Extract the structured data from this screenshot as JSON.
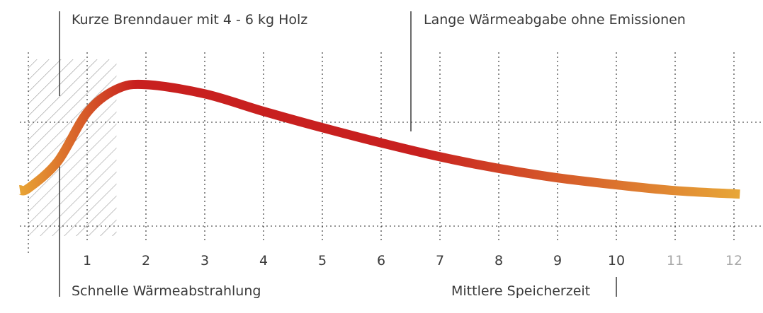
{
  "annotations": {
    "top_left": "Kurze Brenndauer mit 4 - 6 kg Holz",
    "top_right": "Lange Wärmeabgabe ohne Emissionen",
    "bottom_left": "Schnelle Wärmeabstrahlung",
    "bottom_right": "Mittlere Speicherzeit"
  },
  "colors": {
    "curve_start": "#e8a434",
    "curve_peak": "#c8201f",
    "curve_end": "#e8a838",
    "tick_normal": "#3a3a3a",
    "tick_faded": "#a8a8a8",
    "grid": "#2a2a2a",
    "hatch": "#9a9a9a"
  },
  "chart_data": {
    "type": "line",
    "title": "",
    "xlabel": "",
    "ylabel": "",
    "x_ticks": [
      {
        "label": "1",
        "value": 1,
        "faded": false
      },
      {
        "label": "2",
        "value": 2,
        "faded": false
      },
      {
        "label": "3",
        "value": 3,
        "faded": false
      },
      {
        "label": "4",
        "value": 4,
        "faded": false
      },
      {
        "label": "5",
        "value": 5,
        "faded": false
      },
      {
        "label": "6",
        "value": 6,
        "faded": false
      },
      {
        "label": "7",
        "value": 7,
        "faded": false
      },
      {
        "label": "8",
        "value": 8,
        "faded": false
      },
      {
        "label": "9",
        "value": 9,
        "faded": false
      },
      {
        "label": "10",
        "value": 10,
        "faded": false
      },
      {
        "label": "11",
        "value": 11,
        "faded": true
      },
      {
        "label": "12",
        "value": 12,
        "faded": true
      }
    ],
    "xlim": [
      -1,
      12.5
    ],
    "ylim": [
      0,
      100
    ],
    "grid": true,
    "shaded_region": {
      "x_start": 0,
      "x_end": 1.5,
      "pattern": "diagonal-hatch"
    },
    "series": [
      {
        "x": [
          0,
          0.5,
          1,
          1.5,
          2,
          3,
          4,
          5,
          6,
          7,
          8,
          9,
          10,
          11,
          12.1
        ],
        "y": [
          10,
          33,
          75,
          95,
          99,
          91,
          76,
          62,
          49,
          37,
          27,
          19,
          13,
          8,
          5
        ]
      }
    ]
  }
}
